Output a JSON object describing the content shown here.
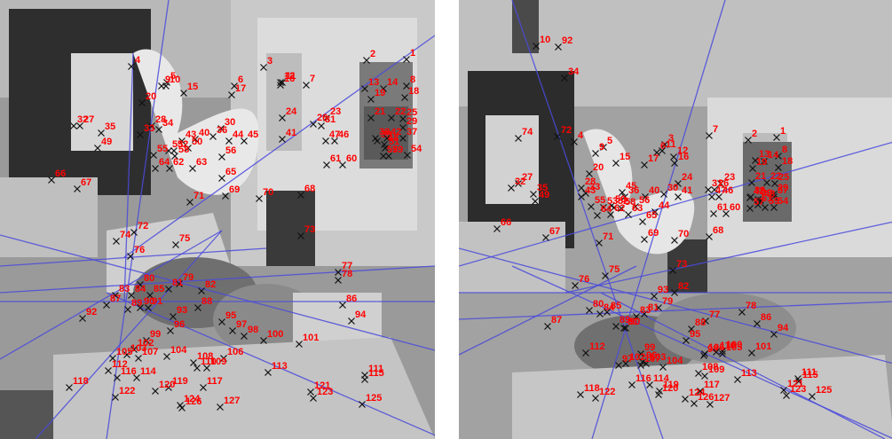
{
  "images": [
    {
      "name": "left-view",
      "point_labels": [
        "1",
        "2",
        "3",
        "4",
        "5",
        "6",
        "7",
        "8",
        "9",
        "10",
        "11",
        "12",
        "13",
        "14",
        "15",
        "16",
        "17",
        "18",
        "19",
        "20",
        "21",
        "22",
        "23",
        "24",
        "25",
        "26",
        "27",
        "28",
        "29",
        "30",
        "31",
        "32",
        "33",
        "34",
        "35",
        "36",
        "37",
        "38",
        "39",
        "40",
        "41",
        "42",
        "43",
        "44",
        "45",
        "46",
        "47",
        "48",
        "49",
        "50",
        "51",
        "52",
        "53",
        "54",
        "55",
        "56",
        "57",
        "58",
        "59",
        "60",
        "61",
        "62",
        "63",
        "64",
        "65",
        "66",
        "67",
        "68",
        "69",
        "70",
        "71",
        "72",
        "73",
        "74",
        "75",
        "76",
        "77",
        "78",
        "79",
        "80",
        "81",
        "82",
        "83",
        "84",
        "85",
        "86",
        "87",
        "88",
        "89",
        "90",
        "91",
        "92",
        "93",
        "94",
        "95",
        "96",
        "97",
        "98",
        "99",
        "100",
        "101",
        "102",
        "103",
        "104",
        "105",
        "106",
        "107",
        "108",
        "109",
        "110",
        "111",
        "112",
        "113",
        "114",
        "115",
        "116",
        "117",
        "118",
        "119",
        "120",
        "121",
        "122",
        "123",
        "124",
        "125",
        "126",
        "127"
      ]
    },
    {
      "name": "right-view",
      "point_labels": [
        "1",
        "2",
        "3",
        "4",
        "5",
        "6",
        "7",
        "8",
        "9",
        "10",
        "11",
        "12",
        "13",
        "14",
        "15",
        "16",
        "17",
        "18",
        "19",
        "20",
        "21",
        "22",
        "23",
        "24",
        "25",
        "26",
        "27",
        "28",
        "29",
        "30",
        "31",
        "32",
        "33",
        "34",
        "35",
        "36",
        "37",
        "38",
        "39",
        "40",
        "41",
        "42",
        "43",
        "44",
        "45",
        "46",
        "47",
        "48",
        "49",
        "50",
        "51",
        "52",
        "53",
        "54",
        "55",
        "56",
        "57",
        "58",
        "59",
        "60",
        "61",
        "62",
        "63",
        "64",
        "65",
        "66",
        "67",
        "68",
        "69",
        "70",
        "71",
        "72",
        "73",
        "74",
        "75",
        "76",
        "77",
        "78",
        "79",
        "80",
        "81",
        "82",
        "83",
        "84",
        "85",
        "86",
        "87",
        "88",
        "89",
        "90",
        "91",
        "92",
        "93",
        "94",
        "95",
        "96",
        "97",
        "98",
        "99",
        "100",
        "101",
        "102",
        "103",
        "104",
        "105",
        "106",
        "107",
        "108",
        "109",
        "110",
        "111",
        "112",
        "113",
        "114",
        "115",
        "116",
        "117",
        "118",
        "119",
        "120",
        "121",
        "122",
        "123",
        "124",
        "125",
        "126",
        "127"
      ]
    }
  ],
  "colors": {
    "marker": "#111111",
    "label": "#ff0000",
    "epipolar_line": "#4a4adc"
  }
}
